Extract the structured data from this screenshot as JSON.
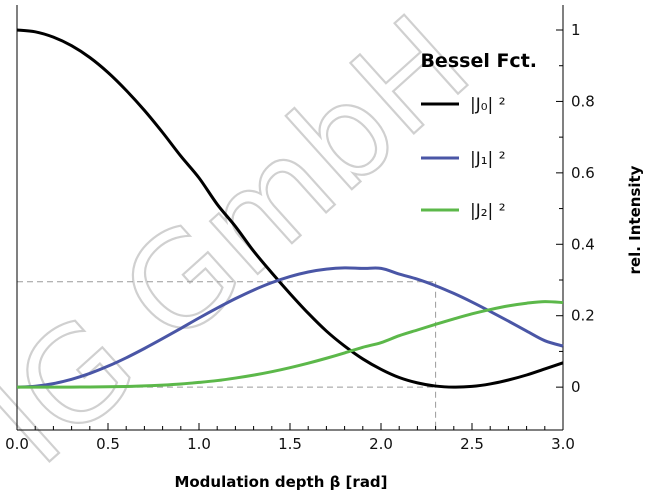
{
  "watermark": "IG GmbH",
  "chart_data": {
    "type": "line",
    "title": "",
    "xlabel": "Modulation depth β [rad]",
    "ylabel": "rel. Intensity",
    "xlim": [
      0.0,
      3.0
    ],
    "ylim": [
      -0.12,
      1.07
    ],
    "y_axis_position": "right",
    "x_ticks": [
      "0.0",
      "0.5",
      "1.0",
      "1.5",
      "2.0",
      "2.5",
      "3.0"
    ],
    "y_ticks": [
      "0",
      "0.2",
      "0.4",
      "0.6",
      "0.8",
      "1"
    ],
    "legend": {
      "title": "Bessel Fct.",
      "position": "top-right"
    },
    "reference_lines": [
      {
        "type": "vertical",
        "x": 2.3,
        "y_max": 0.295
      },
      {
        "type": "horizontal",
        "y": 0.295,
        "x_max": 2.3
      },
      {
        "type": "horizontal",
        "y": 0.0,
        "x_max": 2.3
      }
    ],
    "x": [
      0.0,
      0.1,
      0.2,
      0.3,
      0.4,
      0.5,
      0.6,
      0.7,
      0.8,
      0.9,
      1.0,
      1.1,
      1.2,
      1.3,
      1.4,
      1.5,
      1.6,
      1.7,
      1.8,
      1.9,
      2.0,
      2.1,
      2.2,
      2.3,
      2.4,
      2.5,
      2.6,
      2.7,
      2.8,
      2.9,
      3.0
    ],
    "series": [
      {
        "name": "|J₀| ²",
        "color": "#000000",
        "values": [
          1.0,
          0.995,
          0.98,
          0.956,
          0.923,
          0.881,
          0.831,
          0.775,
          0.713,
          0.647,
          0.586,
          0.512,
          0.45,
          0.381,
          0.32,
          0.262,
          0.207,
          0.157,
          0.115,
          0.079,
          0.05,
          0.027,
          0.012,
          0.003,
          0.0,
          0.002,
          0.009,
          0.02,
          0.034,
          0.051,
          0.068
        ]
      },
      {
        "name": "|J₁| ²",
        "color": "#4a56a6",
        "values": [
          0.0,
          0.0025,
          0.0099,
          0.022,
          0.0384,
          0.0587,
          0.0822,
          0.1082,
          0.1359,
          0.1645,
          0.1936,
          0.2214,
          0.2478,
          0.2718,
          0.2926,
          0.3096,
          0.3224,
          0.3305,
          0.3339,
          0.3324,
          0.3326,
          0.3167,
          0.3023,
          0.284,
          0.2624,
          0.2382,
          0.212,
          0.1849,
          0.1571,
          0.1301,
          0.115
        ]
      },
      {
        "name": "|J₂| ²",
        "color": "#5cb84a",
        "values": [
          0.0,
          1.6e-06,
          2.48e-05,
          0.000125,
          0.000391,
          0.00094,
          0.0019,
          0.00343,
          0.00568,
          0.0088,
          0.0132,
          0.0184,
          0.0254,
          0.0336,
          0.0433,
          0.0545,
          0.0671,
          0.0809,
          0.0958,
          0.1116,
          0.1245,
          0.144,
          0.16,
          0.1758,
          0.191,
          0.2053,
          0.2173,
          0.2276,
          0.235,
          0.2396,
          0.2368
        ]
      }
    ]
  }
}
